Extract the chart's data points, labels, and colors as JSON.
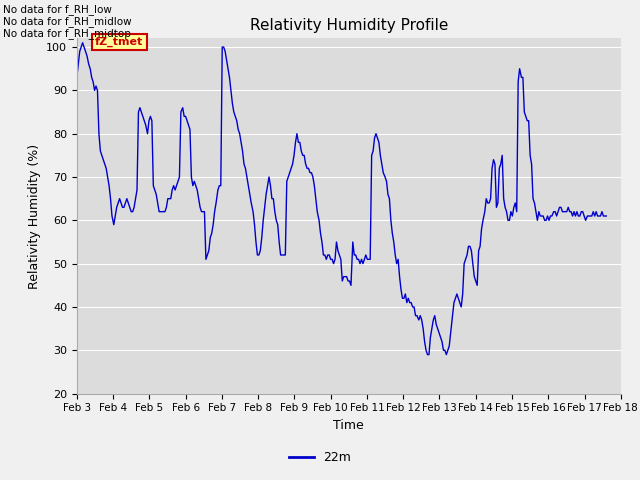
{
  "title": "Relativity Humidity Profile",
  "ylabel": "Relativity Humidity (%)",
  "xlabel": "Time",
  "legend_label": "22m",
  "line_color": "#0000cc",
  "fig_bg_color": "#f0f0f0",
  "plot_bg_color": "#dcdcdc",
  "ylim": [
    20,
    102
  ],
  "yticks": [
    20,
    30,
    40,
    50,
    60,
    70,
    80,
    90,
    100
  ],
  "no_data_texts": [
    "No data for f_RH_low",
    "No data for f_RH_midlow",
    "No data for f_RH_midtop"
  ],
  "annotation_text": "fZ_tmet",
  "annotation_color": "#cc0000",
  "annotation_bg": "#ffff99",
  "x_values": [
    0.0,
    0.04,
    0.08,
    0.12,
    0.16,
    0.2,
    0.24,
    0.28,
    0.33,
    0.37,
    0.41,
    0.45,
    0.49,
    0.53,
    0.57,
    0.61,
    0.65,
    0.69,
    0.73,
    0.77,
    0.81,
    0.85,
    0.89,
    0.93,
    0.97,
    1.02,
    1.06,
    1.1,
    1.14,
    1.18,
    1.22,
    1.26,
    1.3,
    1.34,
    1.38,
    1.42,
    1.46,
    1.5,
    1.54,
    1.58,
    1.62,
    1.66,
    1.7,
    1.74,
    1.78,
    1.82,
    1.86,
    1.9,
    1.95,
    1.99,
    2.03,
    2.07,
    2.11,
    2.15,
    2.19,
    2.23,
    2.27,
    2.31,
    2.35,
    2.39,
    2.43,
    2.47,
    2.51,
    2.55,
    2.59,
    2.63,
    2.67,
    2.71,
    2.75,
    2.79,
    2.83,
    2.87,
    2.92,
    2.96,
    3.0,
    3.04,
    3.08,
    3.12,
    3.16,
    3.2,
    3.24,
    3.28,
    3.32,
    3.36,
    3.4,
    3.44,
    3.48,
    3.52,
    3.56,
    3.6,
    3.64,
    3.68,
    3.72,
    3.76,
    3.8,
    3.84,
    3.89,
    3.93,
    3.97,
    4.01,
    4.05,
    4.09,
    4.13,
    4.17,
    4.21,
    4.25,
    4.29,
    4.33,
    4.37,
    4.41,
    4.45,
    4.49,
    4.53,
    4.57,
    4.61,
    4.65,
    4.69,
    4.73,
    4.77,
    4.81,
    4.86,
    4.9,
    4.94,
    4.98,
    5.02,
    5.06,
    5.1,
    5.14,
    5.18,
    5.22,
    5.26,
    5.3,
    5.34,
    5.38,
    5.42,
    5.46,
    5.5,
    5.54,
    5.58,
    5.62,
    5.66,
    5.7,
    5.75,
    5.79,
    5.83,
    5.87,
    5.91,
    5.95,
    5.99,
    6.03,
    6.07,
    6.11,
    6.15,
    6.19,
    6.23,
    6.27,
    6.31,
    6.35,
    6.39,
    6.43,
    6.47,
    6.51,
    6.55,
    6.59,
    6.63,
    6.68,
    6.72,
    6.76,
    6.8,
    6.84,
    6.88,
    6.92,
    6.96,
    7.0,
    7.04,
    7.08,
    7.12,
    7.16,
    7.2,
    7.24,
    7.28,
    7.32,
    7.36,
    7.4,
    7.44,
    7.48,
    7.52,
    7.56,
    7.61,
    7.65,
    7.69,
    7.73,
    7.77,
    7.81,
    7.85,
    7.89,
    7.93,
    7.97,
    8.01,
    8.05,
    8.09,
    8.13,
    8.17,
    8.21,
    8.25,
    8.29,
    8.33,
    8.37,
    8.41,
    8.45,
    8.5,
    8.54,
    8.58,
    8.62,
    8.66,
    8.7,
    8.74,
    8.78,
    8.82,
    8.86,
    8.9,
    8.94,
    8.98,
    9.02,
    9.06,
    9.1,
    9.14,
    9.18,
    9.22,
    9.26,
    9.3,
    9.34,
    9.38,
    9.43,
    9.47,
    9.51,
    9.55,
    9.59,
    9.63,
    9.67,
    9.71,
    9.75,
    9.79,
    9.83,
    9.87,
    9.91,
    9.95,
    9.99,
    10.03,
    10.07,
    10.11,
    10.15,
    10.19,
    10.23,
    10.27,
    10.32,
    10.36,
    10.4,
    10.44,
    10.48,
    10.52,
    10.56,
    10.6,
    10.64,
    10.68,
    10.72,
    10.76,
    10.8,
    10.84,
    10.88,
    10.92,
    10.96,
    11.0,
    11.04,
    11.08,
    11.12,
    11.16,
    11.2,
    11.25,
    11.29,
    11.33,
    11.37,
    11.41,
    11.45,
    11.49,
    11.53,
    11.57,
    11.61,
    11.65,
    11.69,
    11.73,
    11.77,
    11.81,
    11.85,
    11.89,
    11.93,
    11.97,
    12.01,
    12.05,
    12.09,
    12.13,
    12.17,
    12.21,
    12.26,
    12.3,
    12.34,
    12.38,
    12.42,
    12.46,
    12.5,
    12.54,
    12.58,
    12.62,
    12.66,
    12.7,
    12.74,
    12.78,
    12.82,
    12.86,
    12.9,
    12.94,
    12.98,
    13.02,
    13.06,
    13.1,
    13.15,
    13.19,
    13.23,
    13.27,
    13.31,
    13.35,
    13.39,
    13.43,
    13.47,
    13.51,
    13.55,
    13.59,
    13.63,
    13.67,
    13.71,
    13.75,
    13.79,
    13.83,
    13.87,
    13.91,
    13.95,
    13.99,
    14.03,
    14.08,
    14.12,
    14.16,
    14.2,
    14.24,
    14.28,
    14.32,
    14.36,
    14.4,
    14.44,
    14.48,
    14.52,
    14.56,
    14.6,
    14.64,
    14.68,
    14.72,
    14.76,
    14.8,
    14.84,
    14.88,
    14.92,
    14.97,
    15.0
  ],
  "y_values": [
    93,
    96,
    99,
    100,
    101,
    100,
    99,
    98,
    96,
    95,
    93,
    92,
    90,
    91,
    90,
    80,
    76,
    75,
    74,
    73,
    72,
    70,
    68,
    65,
    61,
    59,
    61,
    63,
    64,
    65,
    64,
    63,
    63,
    64,
    65,
    64,
    63,
    62,
    62,
    63,
    65,
    67,
    85,
    86,
    85,
    84,
    83,
    82,
    80,
    83,
    84,
    83,
    68,
    67,
    66,
    64,
    62,
    62,
    62,
    62,
    62,
    63,
    65,
    65,
    65,
    67,
    68,
    67,
    68,
    69,
    70,
    85,
    86,
    84,
    84,
    83,
    82,
    81,
    70,
    68,
    69,
    68,
    67,
    65,
    63,
    62,
    62,
    62,
    51,
    52,
    53,
    56,
    57,
    59,
    62,
    64,
    67,
    68,
    68,
    100,
    100,
    99,
    97,
    95,
    93,
    90,
    87,
    85,
    84,
    83,
    81,
    80,
    78,
    76,
    73,
    72,
    70,
    68,
    66,
    64,
    62,
    59,
    55,
    52,
    52,
    53,
    56,
    60,
    63,
    66,
    68,
    70,
    68,
    65,
    65,
    62,
    60,
    59,
    55,
    52,
    52,
    52,
    52,
    69,
    70,
    71,
    72,
    73,
    75,
    78,
    80,
    78,
    78,
    76,
    75,
    75,
    73,
    72,
    72,
    71,
    71,
    70,
    68,
    65,
    62,
    60,
    57,
    55,
    52,
    52,
    51,
    52,
    52,
    51,
    51,
    50,
    51,
    55,
    53,
    52,
    51,
    46,
    47,
    47,
    47,
    46,
    46,
    45,
    55,
    52,
    52,
    51,
    51,
    50,
    51,
    50,
    51,
    52,
    51,
    51,
    51,
    75,
    76,
    79,
    80,
    79,
    78,
    75,
    73,
    71,
    70,
    69,
    66,
    65,
    60,
    57,
    55,
    52,
    50,
    51,
    47,
    44,
    42,
    42,
    43,
    41,
    42,
    41,
    41,
    40,
    40,
    38,
    38,
    37,
    38,
    37,
    35,
    32,
    30,
    29,
    29,
    33,
    35,
    37,
    38,
    36,
    35,
    34,
    33,
    32,
    30,
    30,
    29,
    30,
    31,
    35,
    38,
    41,
    42,
    43,
    42,
    41,
    40,
    43,
    50,
    51,
    52,
    54,
    54,
    53,
    50,
    47,
    46,
    45,
    53,
    54,
    58,
    60,
    62,
    65,
    64,
    64,
    65,
    72,
    74,
    73,
    63,
    64,
    72,
    73,
    75,
    65,
    63,
    62,
    60,
    60,
    62,
    61,
    63,
    64,
    62,
    92,
    95,
    93,
    93,
    85,
    84,
    83,
    83,
    75,
    73,
    65,
    64,
    62,
    60,
    62,
    61,
    61,
    61,
    60,
    60,
    61,
    60,
    61,
    61,
    62,
    62,
    61,
    62,
    63,
    63,
    62,
    62,
    62,
    62,
    63,
    62,
    62,
    61,
    62,
    61,
    62,
    61,
    61,
    62,
    62,
    61,
    60,
    61,
    61,
    61,
    61,
    62,
    61,
    62,
    61,
    61,
    61,
    62,
    61,
    61,
    61
  ],
  "xtick_positions": [
    0,
    1,
    2,
    3,
    4,
    5,
    6,
    7,
    8,
    9,
    10,
    11,
    12,
    13,
    14,
    15
  ],
  "xtick_labels": [
    "Feb 3",
    "Feb 4",
    "Feb 5",
    "Feb 6",
    "Feb 7",
    "Feb 8",
    "Feb 9",
    "Feb 10",
    "Feb 11",
    "Feb 12",
    "Feb 13",
    "Feb 14",
    "Feb 15",
    "Feb 16",
    "Feb 17",
    "Feb 18"
  ]
}
